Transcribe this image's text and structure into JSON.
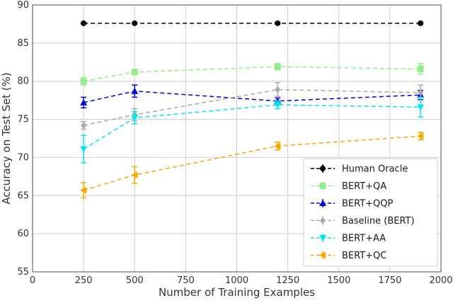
{
  "chart_data": {
    "type": "line",
    "title": "",
    "xlabel": "Number of Training Examples",
    "ylabel": "Accuracy on Test Set (%)",
    "xlim": [
      0,
      2000
    ],
    "ylim": [
      55,
      90
    ],
    "xticks": [
      0,
      250,
      500,
      750,
      1000,
      1250,
      1500,
      1750,
      2000
    ],
    "yticks": [
      55,
      60,
      65,
      70,
      75,
      80,
      85,
      90
    ],
    "grid": true,
    "legend_position": "lower-right",
    "series": [
      {
        "name": "Human Oracle",
        "color": "#000000",
        "marker": "circle",
        "x": [
          250,
          500,
          1200,
          1900
        ],
        "y": [
          87.6,
          87.6,
          87.6,
          87.6
        ],
        "err": [
          0.1,
          0.1,
          0.1,
          0.1
        ]
      },
      {
        "name": "BERT+QA",
        "color": "#90ee90",
        "marker": "square",
        "x": [
          250,
          500,
          1200,
          1900
        ],
        "y": [
          80.0,
          81.2,
          81.9,
          81.6
        ],
        "err": [
          0.5,
          0.2,
          0.4,
          0.7
        ]
      },
      {
        "name": "BERT+QQP",
        "color": "#0000dd",
        "marker": "triangle-up",
        "x": [
          250,
          500,
          1200,
          1900
        ],
        "y": [
          77.2,
          78.7,
          77.4,
          78.2
        ],
        "err": [
          0.7,
          0.8,
          0.4,
          0.6
        ]
      },
      {
        "name": "Baseline (BERT)",
        "color": "#a9a9a9",
        "marker": "diamond",
        "x": [
          250,
          500,
          1200,
          1900
        ],
        "y": [
          74.2,
          75.6,
          78.9,
          78.5
        ],
        "err": [
          0.5,
          0.8,
          0.9,
          1.0
        ]
      },
      {
        "name": "BERT+AA",
        "color": "#00e5ee",
        "marker": "triangle-down",
        "x": [
          250,
          500,
          1200,
          1900
        ],
        "y": [
          71.1,
          75.2,
          76.9,
          76.6
        ],
        "err": [
          1.8,
          0.8,
          0.5,
          1.3
        ]
      },
      {
        "name": "BERT+QC",
        "color": "#ffa500",
        "marker": "triangle-left",
        "x": [
          250,
          500,
          1200,
          1900
        ],
        "y": [
          65.7,
          67.7,
          71.5,
          72.8
        ],
        "err": [
          1.0,
          1.1,
          0.5,
          0.5
        ]
      }
    ]
  }
}
